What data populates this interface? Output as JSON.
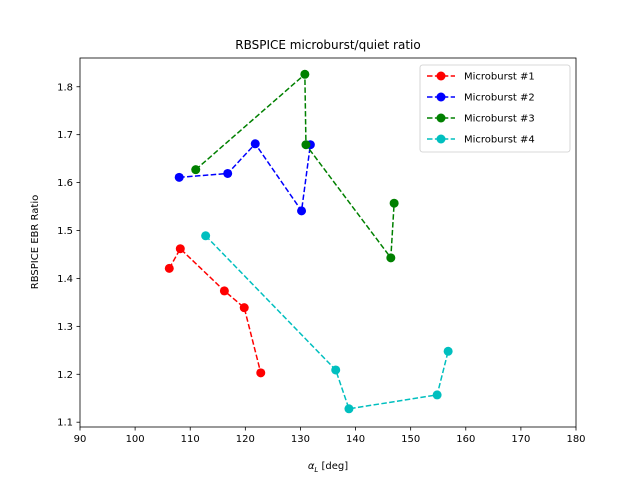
{
  "chart_data": {
    "type": "line",
    "title": "RBSPICE microburst/quiet ratio",
    "xlabel_symbol": "α",
    "xlabel_subscript": "L",
    "xlabel_unit": " [deg]",
    "ylabel": "RBSPICE EBR Ratio",
    "xlim": [
      90,
      180
    ],
    "ylim": [
      1.09,
      1.86
    ],
    "xticks": [
      90,
      100,
      110,
      120,
      130,
      140,
      150,
      160,
      170,
      180
    ],
    "yticks": [
      1.1,
      1.2,
      1.3,
      1.4,
      1.5,
      1.6,
      1.7,
      1.8
    ],
    "legend_position": "top-right",
    "series": [
      {
        "name": "Microburst #1",
        "color": "#ff0000",
        "x": [
          106.2,
          108.2,
          116.2,
          119.8,
          122.8
        ],
        "y": [
          1.421,
          1.462,
          1.374,
          1.339,
          1.203
        ]
      },
      {
        "name": "Microburst #2",
        "color": "#0000ff",
        "x": [
          108.0,
          116.8,
          121.8,
          130.2,
          131.8
        ],
        "y": [
          1.611,
          1.619,
          1.681,
          1.541,
          1.679
        ]
      },
      {
        "name": "Microburst #3",
        "color": "#008000",
        "x": [
          111.0,
          130.8,
          131.0,
          146.4,
          147.0
        ],
        "y": [
          1.627,
          1.826,
          1.679,
          1.443,
          1.557
        ]
      },
      {
        "name": "Microburst #4",
        "color": "#00bfbf",
        "x": [
          112.8,
          136.4,
          138.8,
          154.8,
          156.8
        ],
        "y": [
          1.489,
          1.209,
          1.128,
          1.157,
          1.248
        ]
      }
    ]
  }
}
